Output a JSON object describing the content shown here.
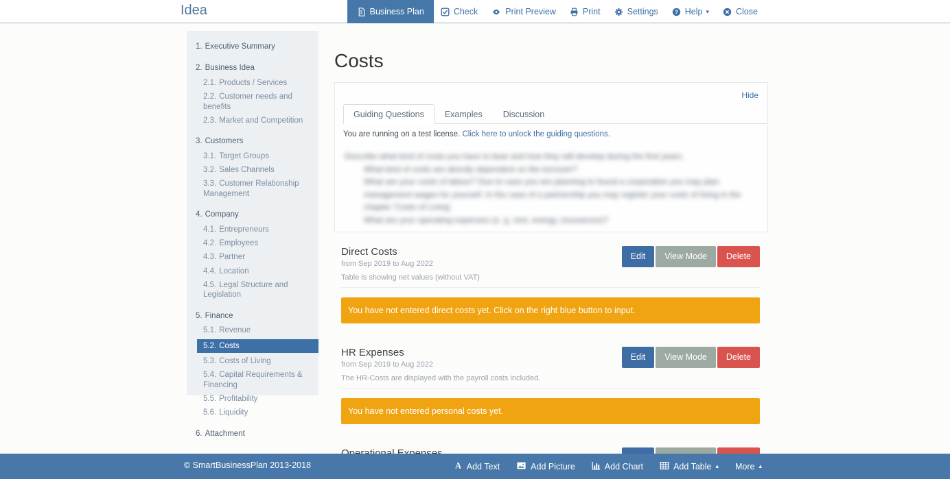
{
  "colors": {
    "accent_blue": "#4577a9",
    "link_blue": "#3c6fa5",
    "selected_blue": "#3e70a8",
    "edit_button": "#3e6da6",
    "view_button": "#9daaa2",
    "delete_button": "#d9534f",
    "warning_orange": "#f1a412",
    "sidebar_bg": "#edf0f2",
    "footer_bg": "#4878a9"
  },
  "header": {
    "title": "Idea",
    "nav": [
      {
        "label": "Business Plan",
        "icon": "document",
        "active": true
      },
      {
        "label": "Check",
        "icon": "check"
      },
      {
        "label": "Print Preview",
        "icon": "eye"
      },
      {
        "label": "Print",
        "icon": "printer"
      },
      {
        "label": "Settings",
        "icon": "gear"
      },
      {
        "label": "Help",
        "icon": "question",
        "caret": "▾"
      },
      {
        "label": "Close",
        "icon": "close"
      }
    ]
  },
  "sidebar": {
    "items": [
      {
        "num": "1.",
        "label": "Executive Summary",
        "level": 1
      },
      {
        "num": "2.",
        "label": "Business Idea",
        "level": 1
      },
      {
        "num": "2.1.",
        "label": "Products / Services",
        "level": 2
      },
      {
        "num": "2.2.",
        "label": "Customer needs and benefits",
        "level": 2
      },
      {
        "num": "2.3.",
        "label": "Market and Competition",
        "level": 2
      },
      {
        "num": "3.",
        "label": "Customers",
        "level": 1
      },
      {
        "num": "3.1.",
        "label": "Target Groups",
        "level": 2
      },
      {
        "num": "3.2.",
        "label": "Sales Channels",
        "level": 2
      },
      {
        "num": "3.3.",
        "label": "Customer Relationship Management",
        "level": 2
      },
      {
        "num": "4.",
        "label": "Company",
        "level": 1
      },
      {
        "num": "4.1.",
        "label": "Entrepreneurs",
        "level": 2
      },
      {
        "num": "4.2.",
        "label": "Employees",
        "level": 2
      },
      {
        "num": "4.3.",
        "label": "Partner",
        "level": 2
      },
      {
        "num": "4.4.",
        "label": "Location",
        "level": 2
      },
      {
        "num": "4.5.",
        "label": "Legal Structure and Legislation",
        "level": 2
      },
      {
        "num": "5.",
        "label": "Finance",
        "level": 1
      },
      {
        "num": "5.1.",
        "label": "Revenue",
        "level": 2
      },
      {
        "num": "5.2.",
        "label": "Costs",
        "level": 2,
        "selected": true
      },
      {
        "num": "5.3.",
        "label": "Costs of Living",
        "level": 2
      },
      {
        "num": "5.4.",
        "label": "Capital Requirements & Financing",
        "level": 2
      },
      {
        "num": "5.5.",
        "label": "Profitability",
        "level": 2
      },
      {
        "num": "5.6.",
        "label": "Liquidity",
        "level": 2
      },
      {
        "num": "6.",
        "label": "Attachment",
        "level": 1
      }
    ]
  },
  "main": {
    "page_title": "Costs",
    "panel": {
      "hide_label": "Hide",
      "tabs": [
        {
          "label": "Guiding Questions",
          "active": true
        },
        {
          "label": "Examples"
        },
        {
          "label": "Discussion"
        }
      ],
      "license_text": "You are running on a test license.",
      "license_link": "Click here to unlock the guiding questions.",
      "locked_preview_blurred": {
        "intro": "Describe what kind of costs you have to bear and how they will develop during the first years.",
        "questions": [
          "What kind of costs are directly dependent on the turnover?",
          "What are your costs of labour? Due to case you are planning to found a corporation you may plan management wages for yourself. In the case of a partnership you may register your costs of living in the chapter 'Costs of Living'.",
          "What are your operating expenses (e. g. rent, energy, insurances)?"
        ]
      }
    },
    "button_labels": {
      "edit": "Edit",
      "view": "View Mode",
      "delete": "Delete"
    },
    "sections": [
      {
        "title": "Direct Costs",
        "subtitle": "from Sep 2019 to Aug 2022",
        "note": "Table is showing net values (without VAT)",
        "warning": "You have not entered direct costs yet. Click on the right blue button to input."
      },
      {
        "title": "HR Expenses",
        "subtitle": "from Sep 2019 to Aug 2022",
        "note": "The HR-Costs are displayed with the payroll costs included.",
        "warning": "You have not entered personal costs yet."
      },
      {
        "title": "Operational Expenses",
        "subtitle": "",
        "note": "",
        "warning": ""
      }
    ]
  },
  "footer": {
    "copyright": "© SmartBusinessPlan 2013-2018",
    "actions": [
      {
        "label": "Add Text",
        "icon": "text"
      },
      {
        "label": "Add Picture",
        "icon": "picture"
      },
      {
        "label": "Add Chart",
        "icon": "chart"
      },
      {
        "label": "Add Table",
        "icon": "table",
        "caret": "▴"
      },
      {
        "label": "More",
        "caret": "▴"
      }
    ]
  }
}
